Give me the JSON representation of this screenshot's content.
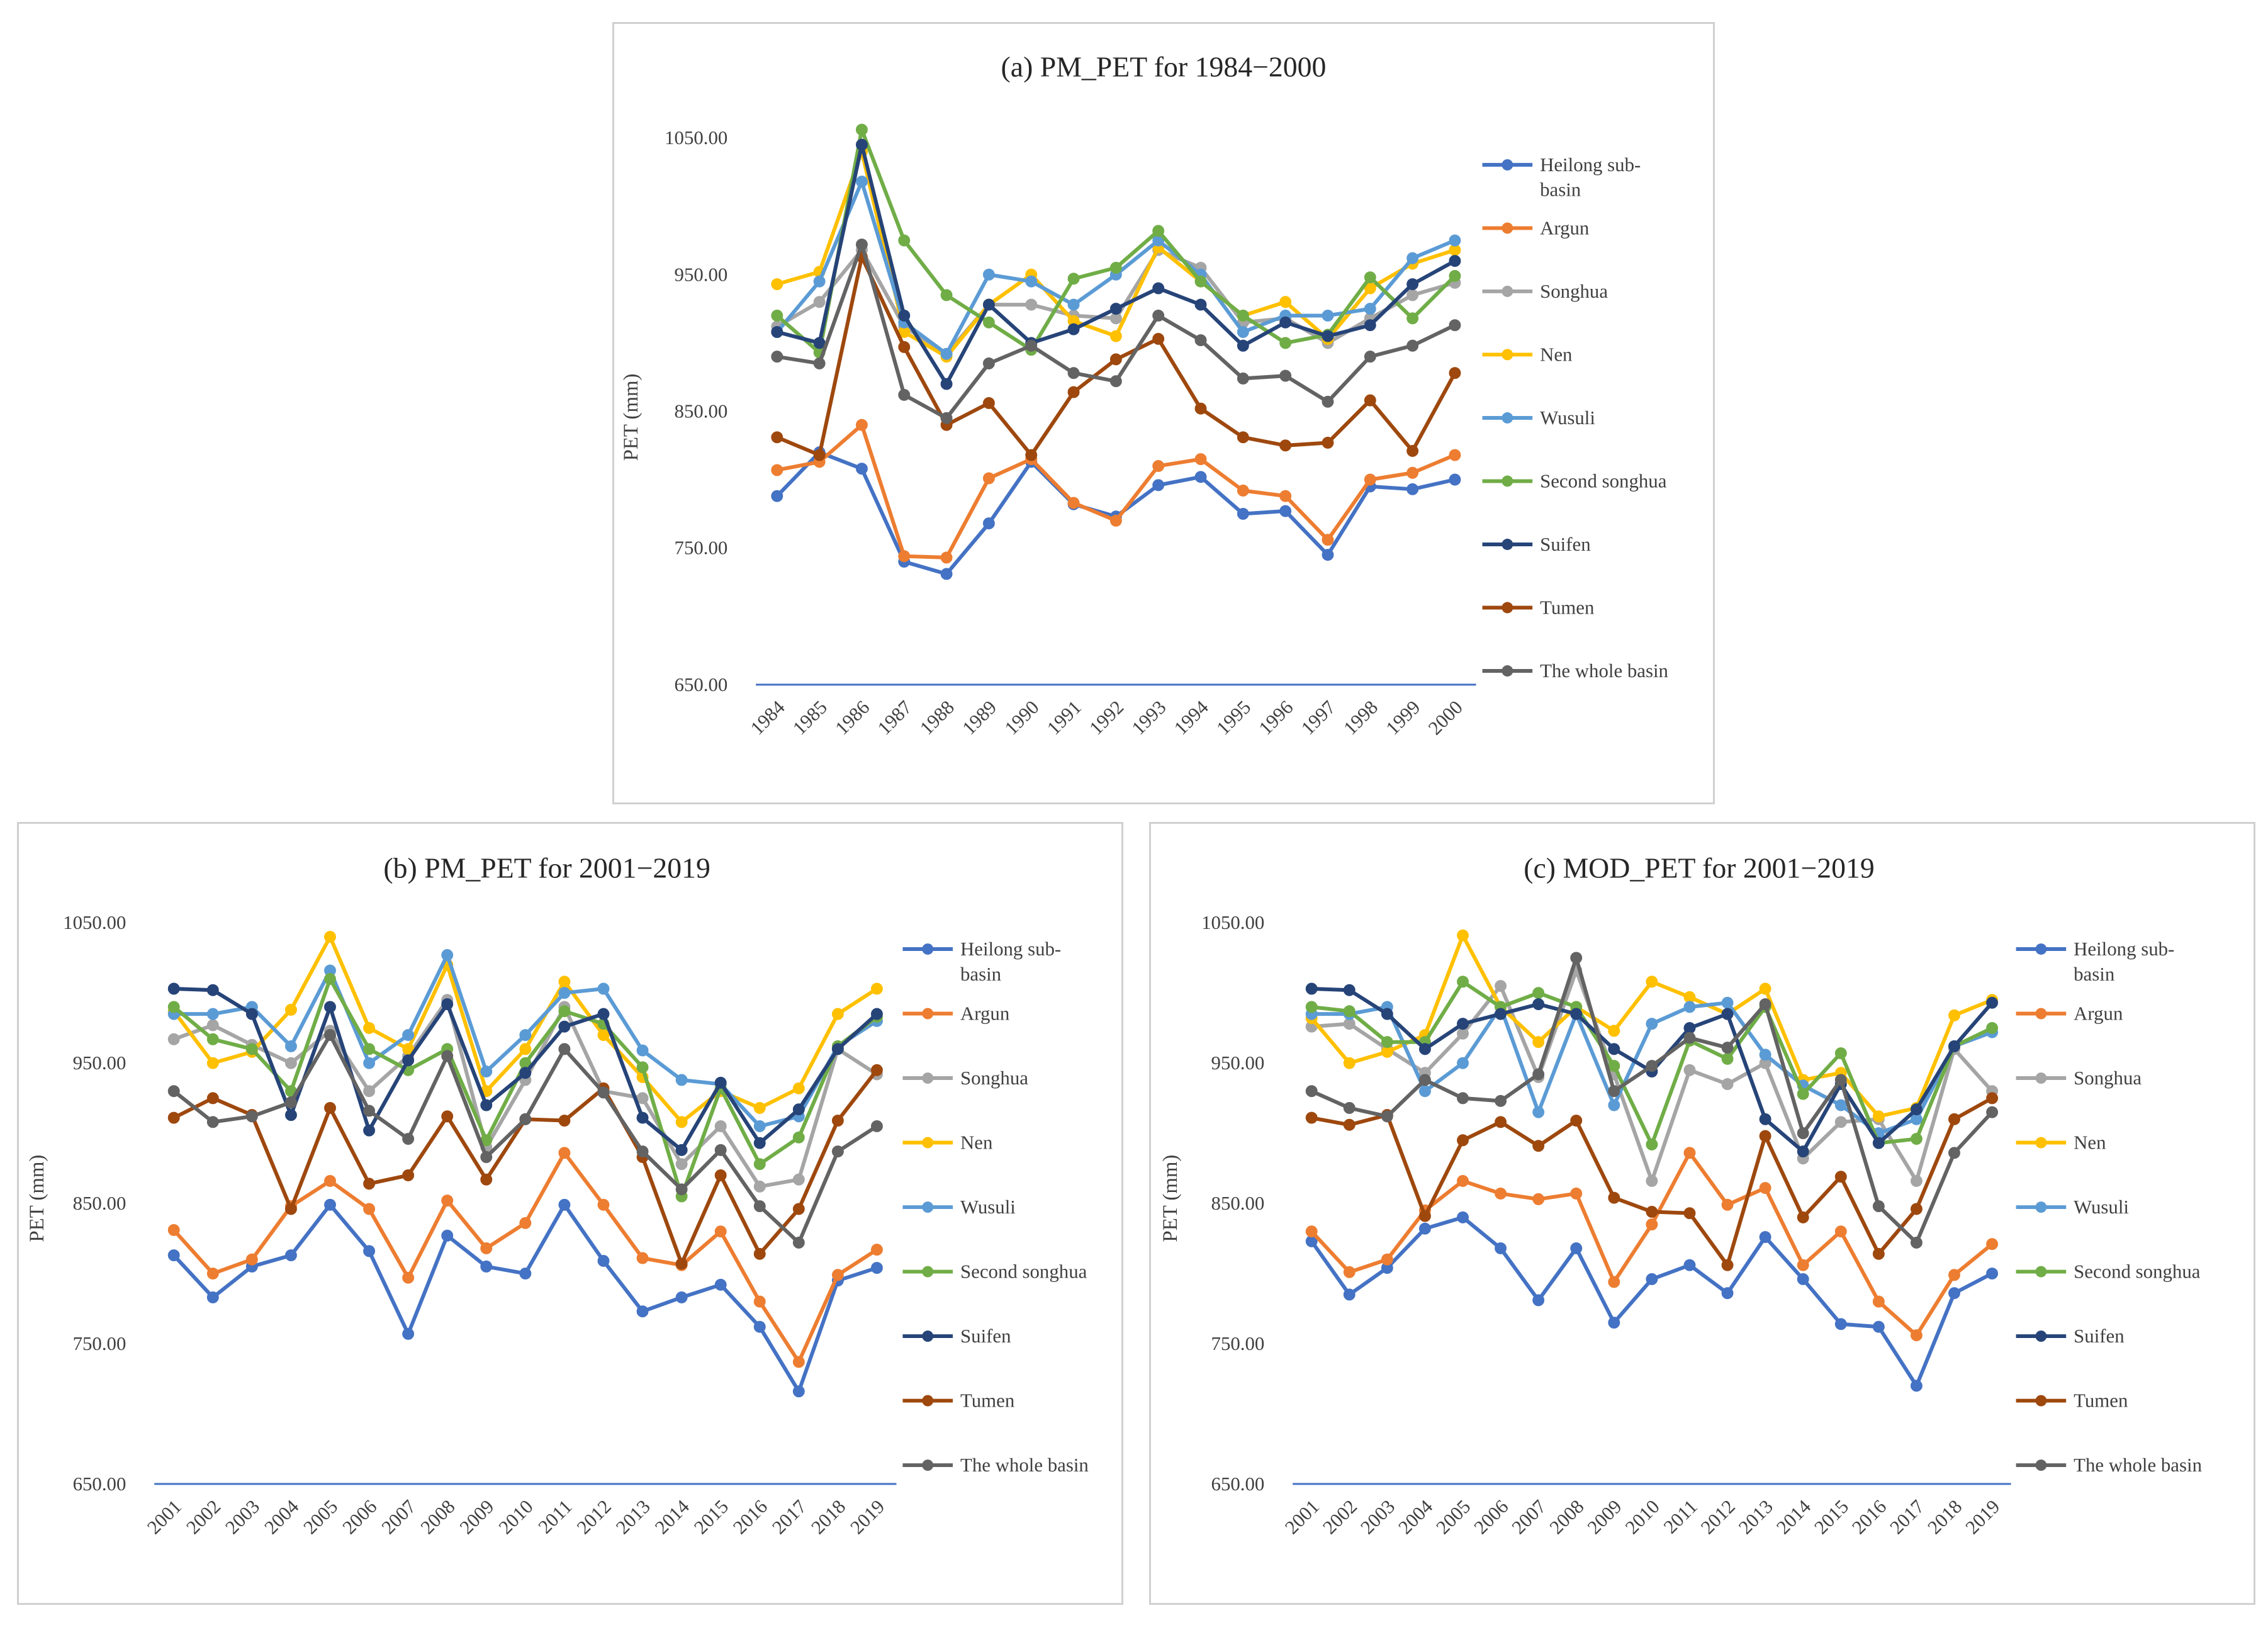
{
  "charts": {
    "a": {
      "title": "(a) PM_PET for 1984−2000",
      "ylabel": "PET (mm)",
      "categories": [
        "1984",
        "1985",
        "1986",
        "1987",
        "1988",
        "1989",
        "1990",
        "1991",
        "1992",
        "1993",
        "1994",
        "1995",
        "1996",
        "1997",
        "1998",
        "1999",
        "2000"
      ],
      "y_ticks": [
        "650.00",
        "750.00",
        "850.00",
        "950.00",
        "1050.00"
      ],
      "legend": [
        "Heilong sub-basin",
        "Argun",
        "Songhua",
        "Nen",
        "Wusuli",
        "Second songhua",
        "Suifen",
        "Tumen",
        "The whole basin"
      ]
    },
    "b": {
      "title": "(b) PM_PET for 2001−2019",
      "ylabel": "PET (mm)",
      "categories": [
        "2001",
        "2002",
        "2003",
        "2004",
        "2005",
        "2006",
        "2007",
        "2008",
        "2009",
        "2010",
        "2011",
        "2012",
        "2013",
        "2014",
        "2015",
        "2016",
        "2017",
        "2018",
        "2019"
      ],
      "y_ticks": [
        "650.00",
        "750.00",
        "850.00",
        "950.00",
        "1050.00"
      ],
      "legend": [
        "Heilong sub-basin",
        "Argun",
        "Songhua",
        "Nen",
        "Wusuli",
        "Second songhua",
        "Suifen",
        "Tumen",
        "The whole basin"
      ]
    },
    "c": {
      "title": "(c) MOD_PET for 2001−2019",
      "ylabel": "PET (mm)",
      "categories": [
        "2001",
        "2002",
        "2003",
        "2004",
        "2005",
        "2006",
        "2007",
        "2008",
        "2009",
        "2010",
        "2011",
        "2012",
        "2013",
        "2014",
        "2015",
        "2016",
        "2017",
        "2018",
        "2019"
      ],
      "y_ticks": [
        "650.00",
        "750.00",
        "850.00",
        "950.00",
        "1050.00"
      ],
      "legend": [
        "Heilong sub-basin",
        "Argun",
        "Songhua",
        "Nen",
        "Wusuli",
        "Second songhua",
        "Suifen",
        "Tumen",
        "The whole basin"
      ]
    }
  },
  "legend_split": {
    "Heilong sub-basin": [
      "Heilong sub-",
      "basin"
    ]
  },
  "series_colors": [
    "#4472c4",
    "#ed7d31",
    "#a5a5a5",
    "#ffc000",
    "#5b9bd5",
    "#70ad47",
    "#264478",
    "#9e480e",
    "#636363"
  ],
  "chart_data": [
    {
      "type": "line",
      "title": "(a) PM_PET for 1984−2000",
      "xlabel": "",
      "ylabel": "PET (mm)",
      "ylim": [
        650,
        1050
      ],
      "x": [
        "1984",
        "1985",
        "1986",
        "1987",
        "1988",
        "1989",
        "1990",
        "1991",
        "1992",
        "1993",
        "1994",
        "1995",
        "1996",
        "1997",
        "1998",
        "1999",
        "2000"
      ],
      "series": [
        {
          "name": "Heilong sub-basin",
          "values": [
            788,
            820,
            808,
            740,
            731,
            768,
            813,
            782,
            773,
            796,
            802,
            775,
            777,
            745,
            795,
            793,
            800
          ]
        },
        {
          "name": "Argun",
          "values": [
            807,
            813,
            840,
            744,
            743,
            801,
            815,
            783,
            770,
            810,
            815,
            792,
            788,
            756,
            800,
            805,
            818
          ]
        },
        {
          "name": "Songhua",
          "values": [
            912,
            930,
            968,
            912,
            892,
            928,
            928,
            920,
            918,
            968,
            955,
            915,
            918,
            900,
            918,
            935,
            944
          ]
        },
        {
          "name": "Nen",
          "values": [
            943,
            952,
            1040,
            908,
            890,
            928,
            950,
            916,
            905,
            970,
            945,
            920,
            930,
            903,
            940,
            958,
            968
          ]
        },
        {
          "name": "Wusuli",
          "values": [
            908,
            945,
            1018,
            915,
            892,
            950,
            945,
            928,
            950,
            975,
            950,
            908,
            920,
            920,
            925,
            962,
            975
          ]
        },
        {
          "name": "Second songhua",
          "values": [
            920,
            893,
            1056,
            975,
            935,
            915,
            895,
            947,
            955,
            982,
            945,
            920,
            900,
            906,
            948,
            918,
            949
          ]
        },
        {
          "name": "Suifen",
          "values": [
            908,
            900,
            1045,
            920,
            870,
            928,
            900,
            910,
            925,
            940,
            928,
            898,
            915,
            905,
            913,
            943,
            960
          ]
        },
        {
          "name": "Tumen",
          "values": [
            831,
            818,
            963,
            897,
            840,
            856,
            818,
            864,
            888,
            903,
            852,
            831,
            825,
            827,
            858,
            821,
            878
          ]
        },
        {
          "name": "The whole basin",
          "values": [
            890,
            885,
            972,
            862,
            845,
            885,
            898,
            878,
            872,
            920,
            902,
            874,
            876,
            857,
            890,
            898,
            913
          ]
        }
      ]
    },
    {
      "type": "line",
      "title": "(b) PM_PET for 2001−2019",
      "xlabel": "",
      "ylabel": "PET (mm)",
      "ylim": [
        650,
        1050
      ],
      "x": [
        "2001",
        "2002",
        "2003",
        "2004",
        "2005",
        "2006",
        "2007",
        "2008",
        "2009",
        "2010",
        "2011",
        "2012",
        "2013",
        "2014",
        "2015",
        "2016",
        "2017",
        "2018",
        "2019"
      ],
      "series": [
        {
          "name": "Heilong sub-basin",
          "values": [
            813,
            783,
            805,
            813,
            849,
            816,
            757,
            827,
            805,
            800,
            849,
            809,
            773,
            783,
            792,
            762,
            716,
            795,
            804
          ]
        },
        {
          "name": "Argun",
          "values": [
            831,
            800,
            810,
            848,
            866,
            846,
            797,
            852,
            818,
            836,
            886,
            849,
            811,
            806,
            830,
            780,
            737,
            799,
            817
          ]
        },
        {
          "name": "Songhua",
          "values": [
            967,
            977,
            963,
            950,
            973,
            930,
            955,
            995,
            890,
            938,
            990,
            930,
            925,
            878,
            905,
            862,
            867,
            960,
            942
          ]
        },
        {
          "name": "Nen",
          "values": [
            987,
            950,
            958,
            988,
            1040,
            975,
            960,
            1020,
            930,
            960,
            1008,
            970,
            940,
            908,
            930,
            918,
            932,
            985,
            1003
          ]
        },
        {
          "name": "Wusuli",
          "values": [
            985,
            985,
            990,
            962,
            1016,
            950,
            970,
            1027,
            944,
            970,
            1000,
            1003,
            959,
            938,
            935,
            905,
            912,
            962,
            980
          ]
        },
        {
          "name": "Second songhua",
          "values": [
            990,
            967,
            960,
            930,
            1010,
            960,
            945,
            960,
            895,
            950,
            987,
            978,
            947,
            855,
            932,
            878,
            897,
            962,
            983
          ]
        },
        {
          "name": "Suifen",
          "values": [
            1003,
            1002,
            985,
            913,
            990,
            902,
            952,
            992,
            920,
            943,
            976,
            985,
            911,
            888,
            936,
            893,
            917,
            960,
            985
          ]
        },
        {
          "name": "Tumen",
          "values": [
            911,
            925,
            913,
            846,
            918,
            864,
            870,
            912,
            867,
            910,
            909,
            932,
            883,
            807,
            870,
            814,
            846,
            909,
            945
          ]
        },
        {
          "name": "The whole basin",
          "values": [
            930,
            908,
            912,
            922,
            970,
            916,
            896,
            955,
            883,
            910,
            960,
            929,
            887,
            860,
            888,
            848,
            822,
            887,
            905
          ]
        }
      ]
    },
    {
      "type": "line",
      "title": "(c) MOD_PET for 2001−2019",
      "xlabel": "",
      "ylabel": "PET (mm)",
      "ylim": [
        650,
        1050
      ],
      "x": [
        "2001",
        "2002",
        "2003",
        "2004",
        "2005",
        "2006",
        "2007",
        "2008",
        "2009",
        "2010",
        "2011",
        "2012",
        "2013",
        "2014",
        "2015",
        "2016",
        "2017",
        "2018",
        "2019"
      ],
      "series": [
        {
          "name": "Heilong sub-basin",
          "values": [
            823,
            785,
            804,
            832,
            840,
            818,
            781,
            818,
            765,
            796,
            806,
            786,
            826,
            796,
            764,
            762,
            720,
            786,
            800
          ]
        },
        {
          "name": "Argun",
          "values": [
            830,
            801,
            810,
            845,
            866,
            857,
            853,
            857,
            794,
            835,
            886,
            849,
            861,
            806,
            830,
            780,
            756,
            799,
            821
          ]
        },
        {
          "name": "Songhua",
          "values": [
            976,
            978,
            960,
            943,
            971,
            1005,
            940,
            1016,
            942,
            866,
            945,
            935,
            950,
            882,
            908,
            910,
            866,
            960,
            930
          ]
        },
        {
          "name": "Nen",
          "values": [
            982,
            950,
            958,
            970,
            1041,
            990,
            965,
            990,
            973,
            1008,
            997,
            985,
            1003,
            938,
            943,
            912,
            918,
            984,
            995
          ]
        },
        {
          "name": "Wusuli",
          "values": [
            985,
            985,
            990,
            930,
            950,
            990,
            915,
            985,
            920,
            978,
            990,
            993,
            956,
            934,
            920,
            900,
            910,
            962,
            972
          ]
        },
        {
          "name": "Second songhua",
          "values": [
            990,
            987,
            965,
            965,
            1008,
            990,
            1000,
            990,
            948,
            892,
            966,
            953,
            990,
            928,
            957,
            893,
            896,
            962,
            975
          ]
        },
        {
          "name": "Suifen",
          "values": [
            1003,
            1002,
            985,
            960,
            978,
            985,
            992,
            985,
            960,
            944,
            975,
            985,
            910,
            887,
            935,
            893,
            917,
            962,
            993
          ]
        },
        {
          "name": "Tumen",
          "values": [
            911,
            906,
            913,
            841,
            895,
            908,
            891,
            909,
            854,
            844,
            843,
            806,
            898,
            840,
            869,
            814,
            846,
            910,
            925
          ]
        },
        {
          "name": "The whole basin",
          "values": [
            930,
            918,
            912,
            938,
            925,
            923,
            942,
            1025,
            930,
            948,
            968,
            961,
            992,
            900,
            938,
            848,
            822,
            886,
            915
          ]
        }
      ]
    }
  ]
}
